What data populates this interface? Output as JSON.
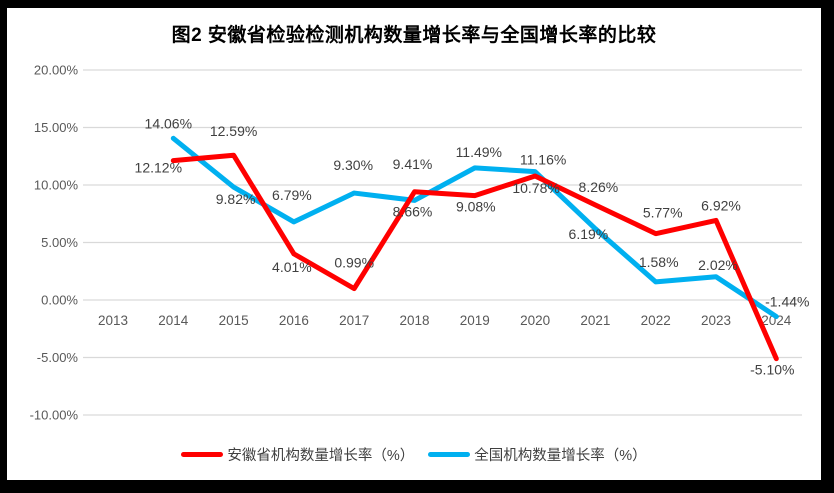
{
  "chart_data": {
    "type": "line",
    "title": "图2 安徽省检验检测机构数量增长率与全国增长率的比较",
    "categories": [
      "2013",
      "2014",
      "2015",
      "2016",
      "2017",
      "2018",
      "2019",
      "2020",
      "2021",
      "2022",
      "2023",
      "2024"
    ],
    "series": [
      {
        "key": "anhui",
        "name": "安徽省机构数量增长率（%）",
        "color": "#FF0000",
        "values": [
          null,
          12.12,
          12.59,
          4.01,
          0.99,
          9.41,
          9.08,
          10.78,
          8.26,
          5.77,
          6.92,
          -5.1
        ],
        "labels": [
          null,
          "12.12%",
          "12.59%",
          "4.01%",
          "0.99%",
          "9.41%",
          "9.08%",
          "10.78%",
          "8.26%",
          "5.77%",
          "6.92%",
          "-5.10%"
        ]
      },
      {
        "key": "national",
        "name": "全国机构数量增长率（%）",
        "color": "#00B0F0",
        "values": [
          null,
          14.06,
          9.82,
          6.79,
          9.3,
          8.66,
          11.49,
          11.16,
          6.19,
          1.58,
          2.02,
          -1.44
        ],
        "labels": [
          null,
          "14.06%",
          "9.82%",
          "6.79%",
          "9.30%",
          "8.66%",
          "11.49%",
          "11.16%",
          "6.19%",
          "1.58%",
          "2.02%",
          "-1.44%"
        ]
      }
    ],
    "y_axis": {
      "min": -10,
      "max": 20,
      "step": 5,
      "ticks": [
        "20.00%",
        "15.00%",
        "10.00%",
        "5.00%",
        "0.00%",
        "-5.00%",
        "-10.00%"
      ]
    },
    "grid": true,
    "legend_position": "bottom",
    "colors": {
      "gridline": "#D9D9D9",
      "axis_text": "#595959",
      "data_label": "#404040",
      "title_text": "#000000",
      "frame": "#000000",
      "background": "#FFFFFF"
    }
  }
}
